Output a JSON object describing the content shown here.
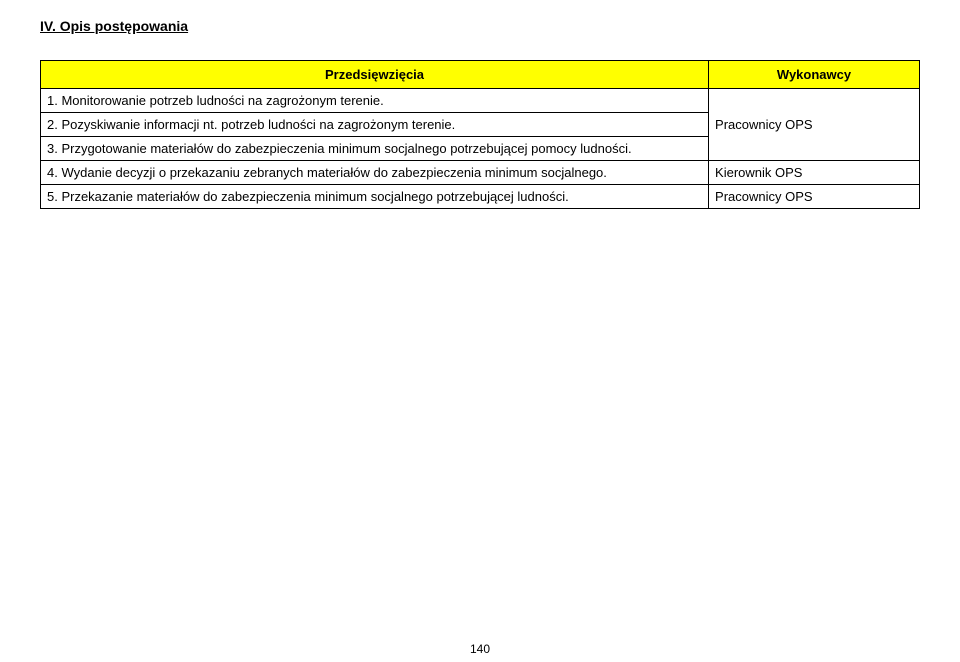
{
  "section_title": "IV. Opis postępowania",
  "table": {
    "header_left": "Przedsięwzięcia",
    "header_right": "Wykonawcy",
    "header_bg": "#ffff00",
    "border_color": "#000000",
    "rows": [
      {
        "left": "1. Monitorowanie potrzeb ludności na zagrożonym terenie.",
        "right": ""
      },
      {
        "left": "2. Pozyskiwanie informacji nt. potrzeb ludności na zagrożonym terenie.",
        "right": "Pracownicy OPS"
      },
      {
        "left": "3. Przygotowanie materiałów do zabezpieczenia minimum socjalnego potrzebującej pomocy ludności.",
        "right": ""
      },
      {
        "left": "4. Wydanie decyzji o przekazaniu zebranych materiałów do zabezpieczenia minimum socjalnego.",
        "right": "Kierownik OPS"
      },
      {
        "left": "5. Przekazanie materiałów do zabezpieczenia minimum socjalnego potrzebującej ludności.",
        "right": "Pracownicy OPS"
      }
    ]
  },
  "page_number": "140"
}
